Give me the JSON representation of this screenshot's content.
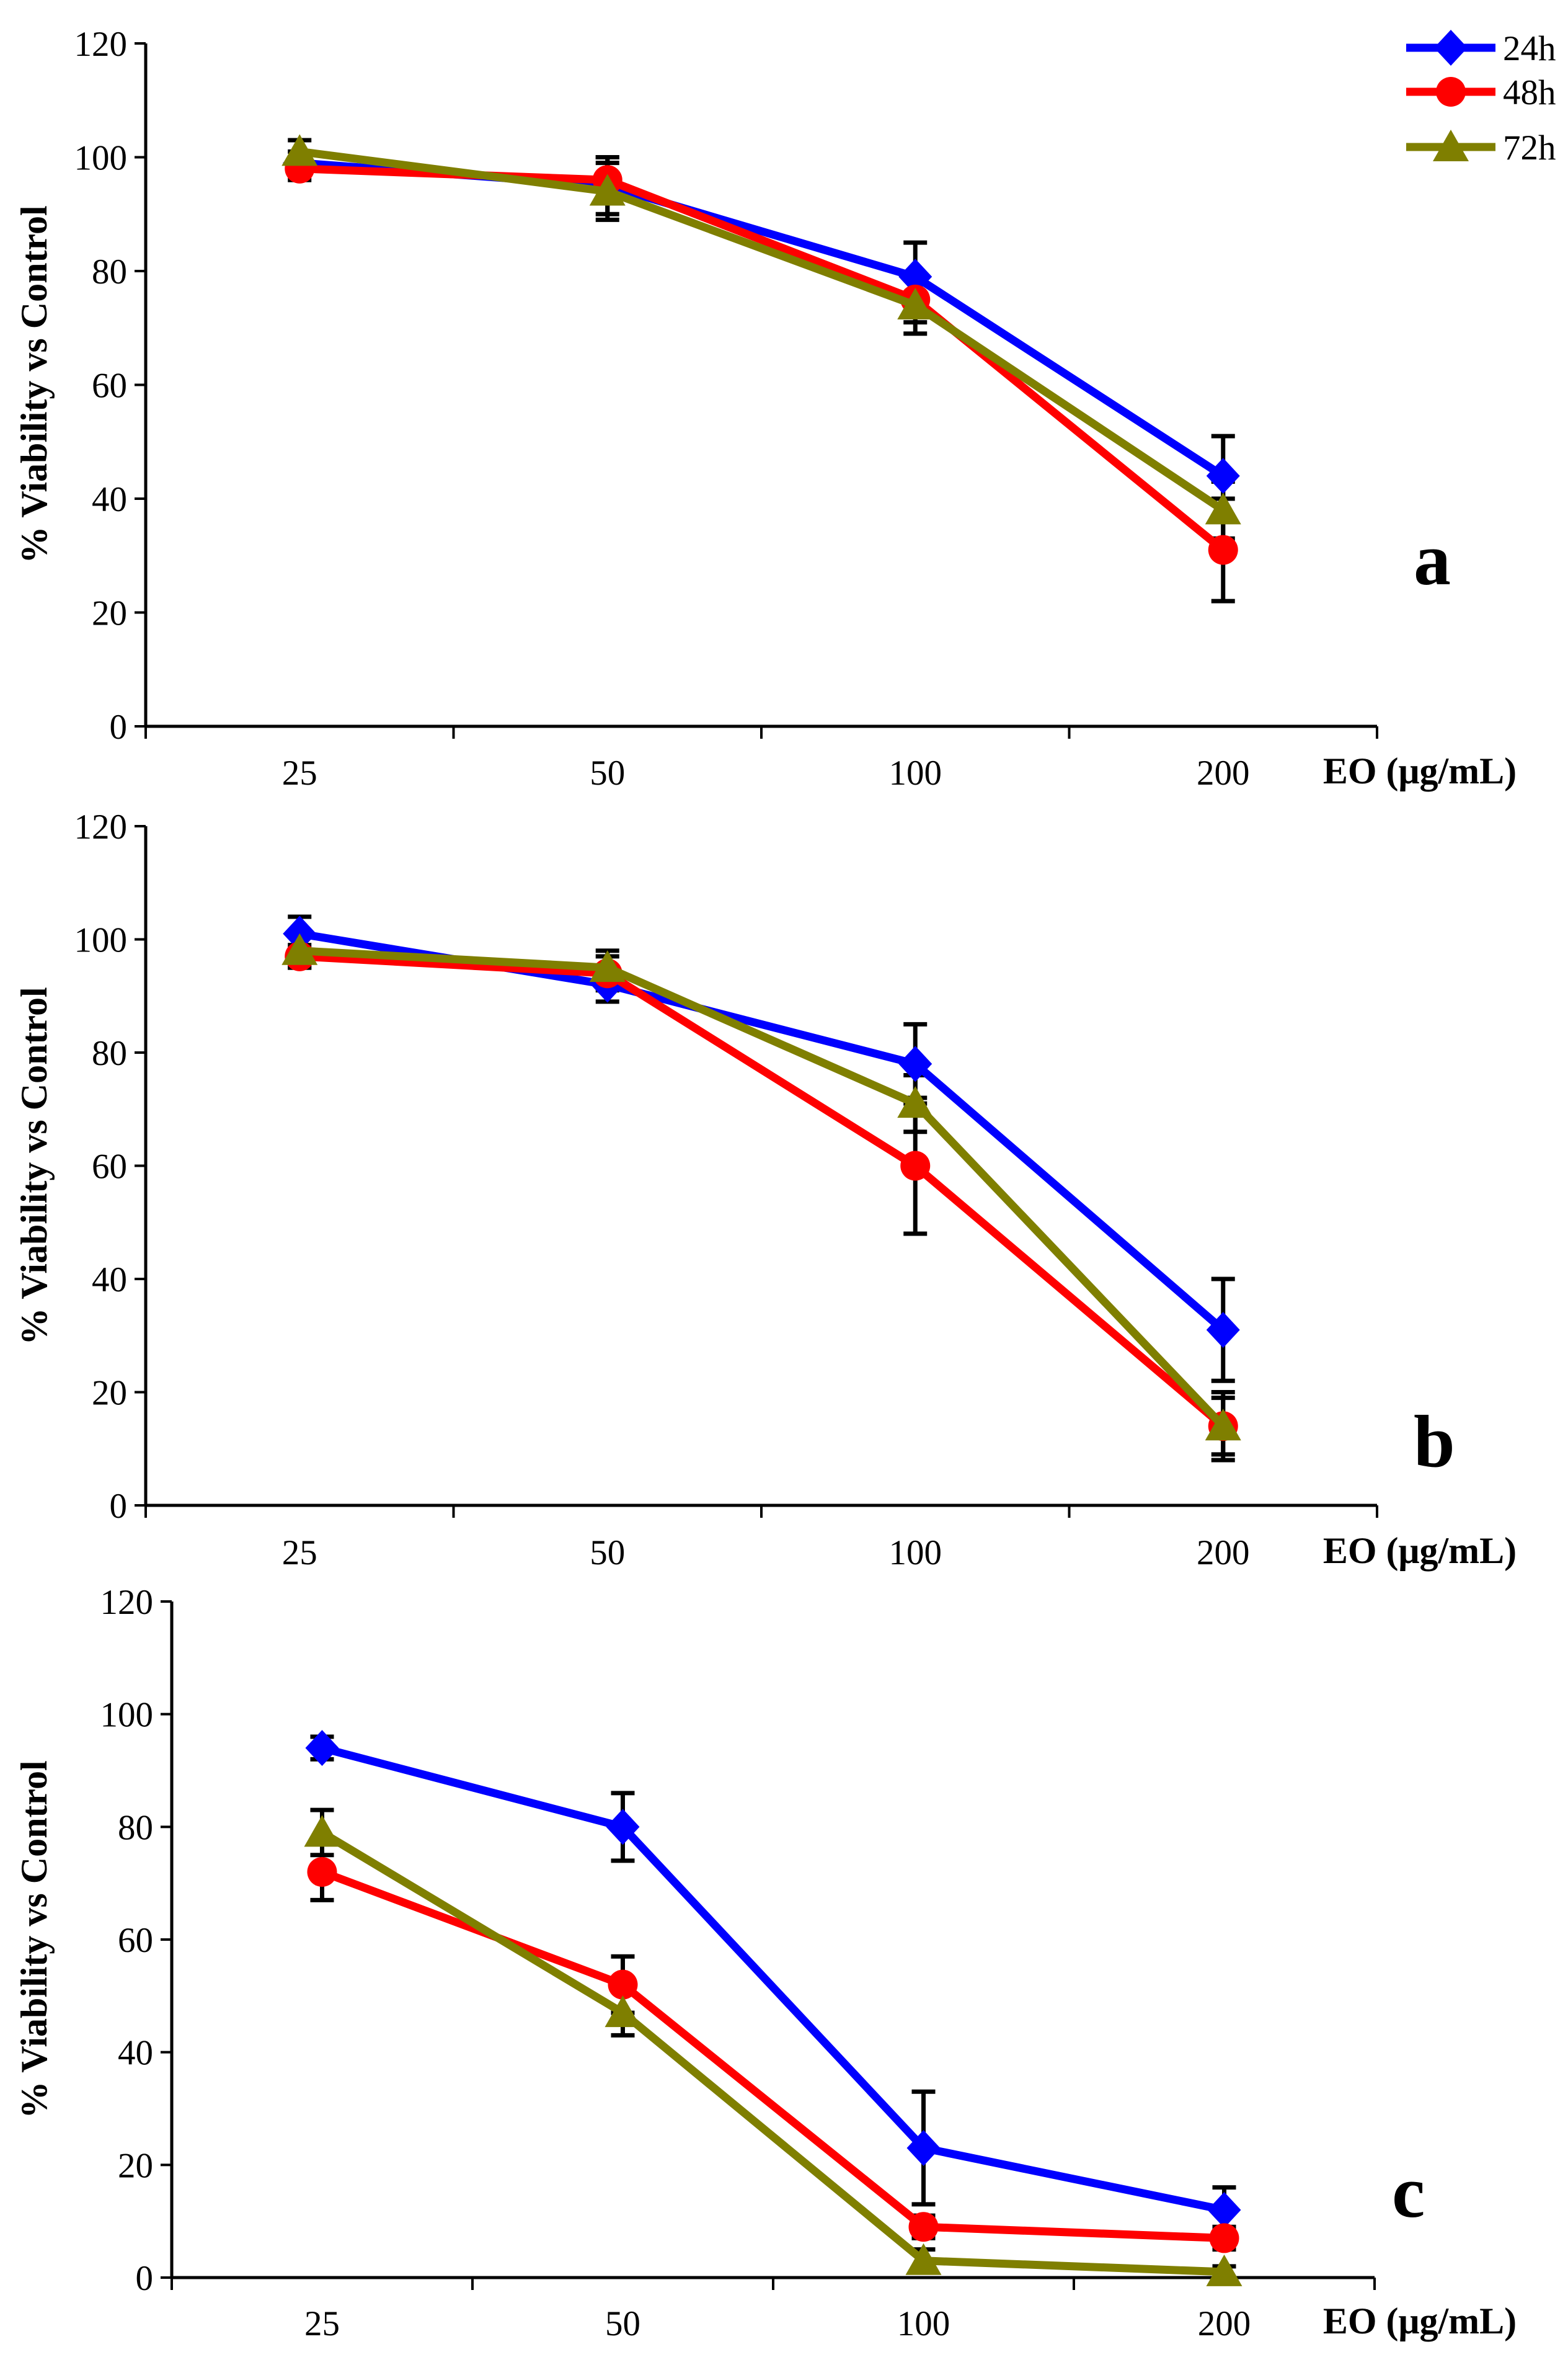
{
  "figure": {
    "x_axis_title": "EO (μg/mL)",
    "y_axis_title": "% Viability vs Control",
    "background_color": "#FFFFFF",
    "axis_color": "#000000",
    "error_bar_color": "#000000",
    "legend": {
      "position": "top-right",
      "items": [
        "24h",
        "48h",
        "72h"
      ]
    }
  },
  "chart_data": [
    {
      "type": "line",
      "panel_label": "a",
      "categories": [
        "25",
        "50",
        "100",
        "200"
      ],
      "xlabel": "EO (μg/mL)",
      "ylabel": "% Viability vs Control",
      "ylim": [
        0,
        120
      ],
      "yticks": [
        0,
        20,
        40,
        60,
        80,
        100,
        120
      ],
      "grid": false,
      "series": [
        {
          "name": "24h",
          "color": "#0000FE",
          "marker": "diamond",
          "values": [
            99,
            95,
            79,
            44
          ],
          "errors": [
            2,
            5,
            6,
            7
          ]
        },
        {
          "name": "48h",
          "color": "#FE0000",
          "marker": "circle",
          "values": [
            98,
            96,
            75,
            31
          ],
          "errors": [
            2,
            4,
            4,
            9
          ]
        },
        {
          "name": "72h",
          "color": "#7F7F00",
          "marker": "triangle",
          "values": [
            101,
            94,
            74,
            38
          ],
          "errors": [
            2,
            5,
            5,
            5
          ]
        }
      ]
    },
    {
      "type": "line",
      "panel_label": "b",
      "categories": [
        "25",
        "50",
        "100",
        "200"
      ],
      "xlabel": "EO (μg/mL)",
      "ylabel": "% Viability vs Control",
      "ylim": [
        0,
        120
      ],
      "yticks": [
        0,
        20,
        40,
        60,
        80,
        100,
        120
      ],
      "grid": false,
      "series": [
        {
          "name": "24h",
          "color": "#0000FE",
          "marker": "diamond",
          "values": [
            101,
            92,
            78,
            31
          ],
          "errors": [
            3,
            3,
            7,
            9
          ]
        },
        {
          "name": "48h",
          "color": "#FE0000",
          "marker": "circle",
          "values": [
            97,
            94,
            60,
            14
          ],
          "errors": [
            2,
            3,
            12,
            6
          ]
        },
        {
          "name": "72h",
          "color": "#7F7F00",
          "marker": "triangle",
          "values": [
            98,
            95,
            71,
            14
          ],
          "errors": [
            3,
            3,
            5,
            5
          ]
        }
      ]
    },
    {
      "type": "line",
      "panel_label": "c",
      "categories": [
        "25",
        "50",
        "100",
        "200"
      ],
      "xlabel": "EO (μg/mL)",
      "ylabel": "% Viability vs Control",
      "ylim": [
        0,
        120
      ],
      "yticks": [
        0,
        20,
        40,
        60,
        80,
        100,
        120
      ],
      "grid": false,
      "series": [
        {
          "name": "24h",
          "color": "#0000FE",
          "marker": "diamond",
          "values": [
            94,
            80,
            23,
            12
          ],
          "errors": [
            2,
            6,
            10,
            4
          ]
        },
        {
          "name": "48h",
          "color": "#FE0000",
          "marker": "circle",
          "values": [
            72,
            52,
            9,
            7
          ],
          "errors": [
            5,
            5,
            2,
            2
          ]
        },
        {
          "name": "72h",
          "color": "#7F7F00",
          "marker": "triangle",
          "values": [
            79,
            47,
            3,
            1
          ],
          "errors": [
            4,
            4,
            2,
            1
          ]
        }
      ]
    }
  ]
}
